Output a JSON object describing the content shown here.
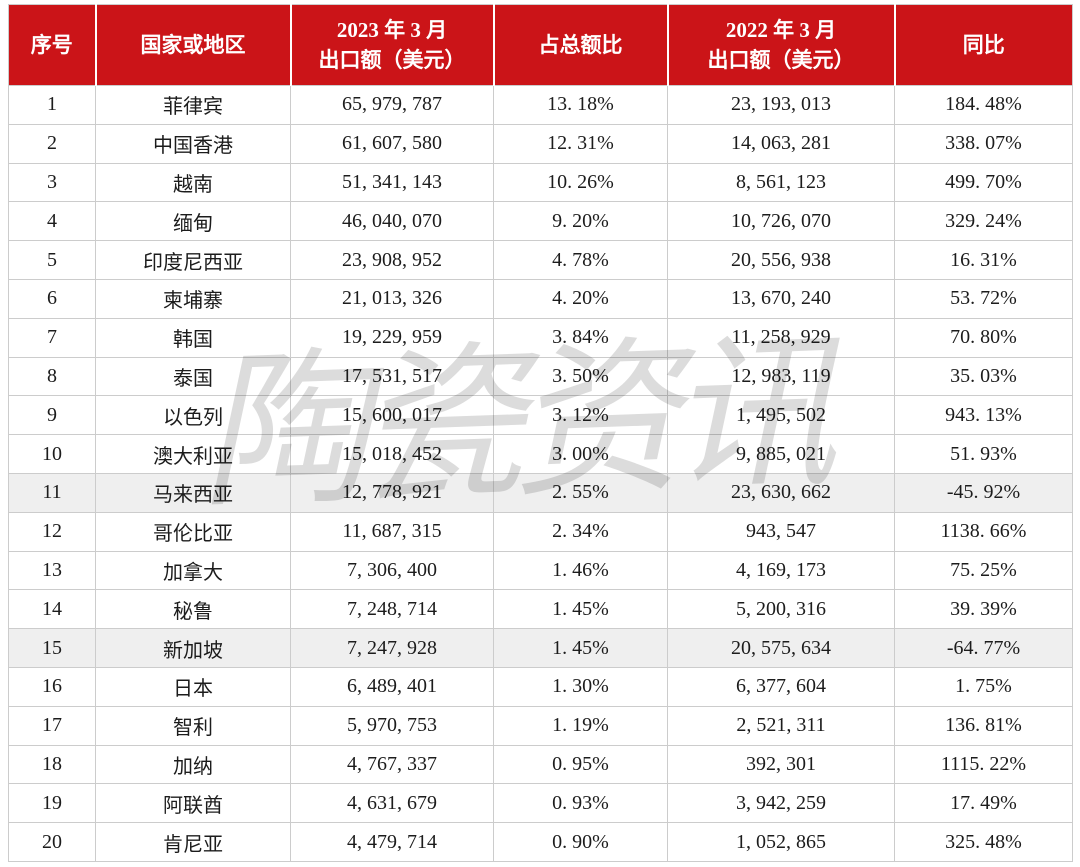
{
  "watermark": {
    "text": "陶瓷资讯",
    "color": "#BFBFBF"
  },
  "theme": {
    "header_bg": "#CB1418",
    "header_text": "#FFFFFF",
    "highlight_row_bg": "#EFEFEF",
    "border": "#CCCCCC",
    "body_text": "#1C1C1C"
  },
  "table": {
    "header": {
      "columns": [
        {
          "lines": [
            "序号"
          ]
        },
        {
          "lines": [
            "国家或地区"
          ]
        },
        {
          "lines": [
            "2023 年 3 月",
            "出口额（美元）"
          ]
        },
        {
          "lines": [
            "占总额比"
          ]
        },
        {
          "lines": [
            "2022 年 3 月",
            "出口额（美元）"
          ]
        },
        {
          "lines": [
            "同比"
          ]
        }
      ]
    },
    "rows": [
      {
        "rank": "1",
        "region": "菲律宾",
        "export_2023": "65, 979, 787",
        "share": "13. 18%",
        "export_2022": "23, 193, 013",
        "yoy": "184. 48%",
        "highlight": false
      },
      {
        "rank": "2",
        "region": "中国香港",
        "export_2023": "61, 607, 580",
        "share": "12. 31%",
        "export_2022": "14, 063, 281",
        "yoy": "338. 07%",
        "highlight": false
      },
      {
        "rank": "3",
        "region": "越南",
        "export_2023": "51, 341, 143",
        "share": "10. 26%",
        "export_2022": "8, 561, 123",
        "yoy": "499. 70%",
        "highlight": false
      },
      {
        "rank": "4",
        "region": "缅甸",
        "export_2023": "46, 040, 070",
        "share": "9. 20%",
        "export_2022": "10, 726, 070",
        "yoy": "329. 24%",
        "highlight": false
      },
      {
        "rank": "5",
        "region": "印度尼西亚",
        "export_2023": "23, 908, 952",
        "share": "4. 78%",
        "export_2022": "20, 556, 938",
        "yoy": "16. 31%",
        "highlight": false
      },
      {
        "rank": "6",
        "region": "柬埔寨",
        "export_2023": "21, 013, 326",
        "share": "4. 20%",
        "export_2022": "13, 670, 240",
        "yoy": "53. 72%",
        "highlight": false
      },
      {
        "rank": "7",
        "region": "韩国",
        "export_2023": "19, 229, 959",
        "share": "3. 84%",
        "export_2022": "11, 258, 929",
        "yoy": "70. 80%",
        "highlight": false
      },
      {
        "rank": "8",
        "region": "泰国",
        "export_2023": "17, 531, 517",
        "share": "3. 50%",
        "export_2022": "12, 983, 119",
        "yoy": "35. 03%",
        "highlight": false
      },
      {
        "rank": "9",
        "region": "以色列",
        "export_2023": "15, 600, 017",
        "share": "3. 12%",
        "export_2022": "1, 495, 502",
        "yoy": "943. 13%",
        "highlight": false
      },
      {
        "rank": "10",
        "region": "澳大利亚",
        "export_2023": "15, 018, 452",
        "share": "3. 00%",
        "export_2022": "9, 885, 021",
        "yoy": "51. 93%",
        "highlight": false
      },
      {
        "rank": "11",
        "region": "马来西亚",
        "export_2023": "12, 778, 921",
        "share": "2. 55%",
        "export_2022": "23, 630, 662",
        "yoy": "-45. 92%",
        "highlight": true
      },
      {
        "rank": "12",
        "region": "哥伦比亚",
        "export_2023": "11, 687, 315",
        "share": "2. 34%",
        "export_2022": "943, 547",
        "yoy": "1138. 66%",
        "highlight": false
      },
      {
        "rank": "13",
        "region": "加拿大",
        "export_2023": "7, 306, 400",
        "share": "1. 46%",
        "export_2022": "4, 169, 173",
        "yoy": "75. 25%",
        "highlight": false
      },
      {
        "rank": "14",
        "region": "秘鲁",
        "export_2023": "7, 248, 714",
        "share": "1. 45%",
        "export_2022": "5, 200, 316",
        "yoy": "39. 39%",
        "highlight": false
      },
      {
        "rank": "15",
        "region": "新加坡",
        "export_2023": "7, 247, 928",
        "share": "1. 45%",
        "export_2022": "20, 575, 634",
        "yoy": "-64. 77%",
        "highlight": true
      },
      {
        "rank": "16",
        "region": "日本",
        "export_2023": "6, 489, 401",
        "share": "1. 30%",
        "export_2022": "6, 377, 604",
        "yoy": "1. 75%",
        "highlight": false
      },
      {
        "rank": "17",
        "region": "智利",
        "export_2023": "5, 970, 753",
        "share": "1. 19%",
        "export_2022": "2, 521, 311",
        "yoy": "136. 81%",
        "highlight": false
      },
      {
        "rank": "18",
        "region": "加纳",
        "export_2023": "4, 767, 337",
        "share": "0. 95%",
        "export_2022": "392, 301",
        "yoy": "1115. 22%",
        "highlight": false
      },
      {
        "rank": "19",
        "region": "阿联酋",
        "export_2023": "4, 631, 679",
        "share": "0. 93%",
        "export_2022": "3, 942, 259",
        "yoy": "17. 49%",
        "highlight": false
      },
      {
        "rank": "20",
        "region": "肯尼亚",
        "export_2023": "4, 479, 714",
        "share": "0. 90%",
        "export_2022": "1, 052, 865",
        "yoy": "325. 48%",
        "highlight": false
      }
    ]
  },
  "chart_data": {
    "type": "table",
    "title": "",
    "columns": [
      "序号",
      "国家或地区",
      "2023年3月出口额（美元）",
      "占总额比",
      "2022年3月出口额（美元）",
      "同比"
    ],
    "rows": [
      [
        1,
        "菲律宾",
        65979787,
        "13.18%",
        23193013,
        "184.48%"
      ],
      [
        2,
        "中国香港",
        61607580,
        "12.31%",
        14063281,
        "338.07%"
      ],
      [
        3,
        "越南",
        51341143,
        "10.26%",
        8561123,
        "499.70%"
      ],
      [
        4,
        "缅甸",
        46040070,
        "9.20%",
        10726070,
        "329.24%"
      ],
      [
        5,
        "印度尼西亚",
        23908952,
        "4.78%",
        20556938,
        "16.31%"
      ],
      [
        6,
        "柬埔寨",
        21013326,
        "4.20%",
        13670240,
        "53.72%"
      ],
      [
        7,
        "韩国",
        19229959,
        "3.84%",
        11258929,
        "70.80%"
      ],
      [
        8,
        "泰国",
        17531517,
        "3.50%",
        12983119,
        "35.03%"
      ],
      [
        9,
        "以色列",
        15600017,
        "3.12%",
        1495502,
        "943.13%"
      ],
      [
        10,
        "澳大利亚",
        15018452,
        "3.00%",
        9885021,
        "51.93%"
      ],
      [
        11,
        "马来西亚",
        12778921,
        "2.55%",
        23630662,
        "-45.92%"
      ],
      [
        12,
        "哥伦比亚",
        11687315,
        "2.34%",
        943547,
        "1138.66%"
      ],
      [
        13,
        "加拿大",
        7306400,
        "1.46%",
        4169173,
        "75.25%"
      ],
      [
        14,
        "秘鲁",
        7248714,
        "1.45%",
        5200316,
        "39.39%"
      ],
      [
        15,
        "新加坡",
        7247928,
        "1.45%",
        20575634,
        "-64.77%"
      ],
      [
        16,
        "日本",
        6489401,
        "1.30%",
        6377604,
        "1.75%"
      ],
      [
        17,
        "智利",
        5970753,
        "1.19%",
        2521311,
        "136.81%"
      ],
      [
        18,
        "加纳",
        4767337,
        "0.95%",
        392301,
        "1115.22%"
      ],
      [
        19,
        "阿联酋",
        4631679,
        "0.93%",
        3942259,
        "17.49%"
      ],
      [
        20,
        "肯尼亚",
        4479714,
        "0.90%",
        1052865,
        "325.48%"
      ]
    ]
  }
}
